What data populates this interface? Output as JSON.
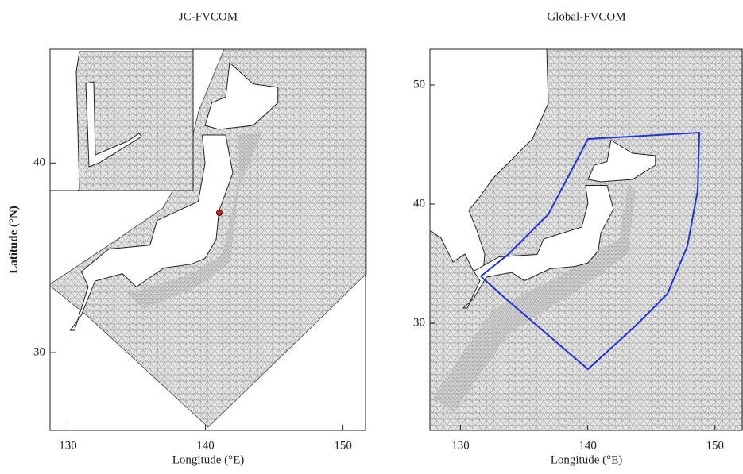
{
  "panels": [
    {
      "title": "JC-FVCOM",
      "xlabel": "Longitude (°E)",
      "ylabel": "Latitude (°N)",
      "xlim": [
        128.7,
        151.7
      ],
      "ylim": [
        25.9,
        46.0
      ],
      "xticks": [
        130,
        140,
        150
      ],
      "yticks": [
        30,
        40
      ]
    },
    {
      "title": "Global-FVCOM",
      "xlabel": "Longitude (°E)",
      "xlim": [
        127.6,
        152.2
      ],
      "ylim": [
        21.0,
        53.0
      ],
      "xticks": [
        130,
        140,
        150
      ],
      "yticks": [
        30,
        40,
        50
      ]
    }
  ]
}
